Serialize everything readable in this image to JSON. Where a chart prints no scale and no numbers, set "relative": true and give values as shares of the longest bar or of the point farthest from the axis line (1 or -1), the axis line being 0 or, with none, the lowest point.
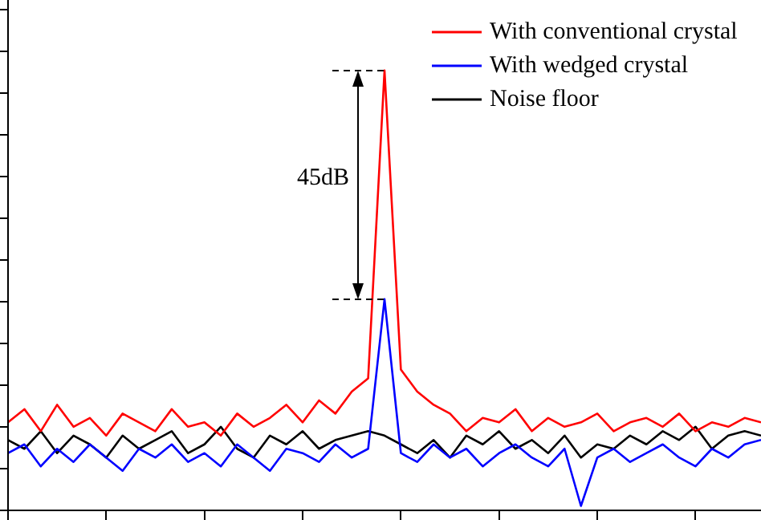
{
  "chart_data": {
    "type": "line",
    "relative": true,
    "categories": [
      null,
      null,
      null,
      null,
      null,
      null,
      null,
      null,
      null,
      null,
      null,
      null,
      null,
      null,
      null,
      null,
      null,
      null,
      null,
      null,
      null,
      null,
      null,
      null,
      null,
      null,
      null,
      null,
      null,
      null,
      null,
      null,
      null,
      null,
      null,
      null,
      null,
      null,
      null,
      null,
      null,
      null,
      null,
      null,
      null,
      null,
      null
    ],
    "series": [
      {
        "name": "With conventional crystal",
        "color": "#ff0000",
        "values": [
          0.2,
          0.23,
          0.18,
          0.24,
          0.19,
          0.21,
          0.17,
          0.22,
          0.2,
          0.18,
          0.23,
          0.19,
          0.2,
          0.17,
          0.22,
          0.19,
          0.21,
          0.24,
          0.2,
          0.25,
          0.22,
          0.27,
          0.3,
          1,
          0.32,
          0.27,
          0.24,
          0.22,
          0.18,
          0.21,
          0.2,
          0.23,
          0.18,
          0.21,
          0.19,
          0.2,
          0.22,
          0.18,
          0.2,
          0.21,
          0.19,
          0.22,
          0.18,
          0.2,
          0.19,
          0.21,
          0.2
        ]
      },
      {
        "name": "With wedged crystal",
        "color": "#0000ff",
        "values": [
          0.13,
          0.15,
          0.1,
          0.14,
          0.11,
          0.15,
          0.12,
          0.09,
          0.14,
          0.12,
          0.15,
          0.11,
          0.13,
          0.1,
          0.15,
          0.12,
          0.09,
          0.14,
          0.13,
          0.11,
          0.15,
          0.12,
          0.14,
          0.48,
          0.13,
          0.11,
          0.15,
          0.12,
          0.14,
          0.1,
          0.13,
          0.15,
          0.12,
          0.1,
          0.14,
          0.01,
          0.12,
          0.14,
          0.11,
          0.13,
          0.15,
          0.12,
          0.1,
          0.14,
          0.12,
          0.15,
          0.16
        ]
      },
      {
        "name": "Noise floor",
        "color": "#000000",
        "values": [
          0.16,
          0.14,
          0.18,
          0.13,
          0.17,
          0.15,
          0.12,
          0.17,
          0.14,
          0.16,
          0.18,
          0.13,
          0.15,
          0.19,
          0.14,
          0.12,
          0.17,
          0.15,
          0.18,
          0.14,
          0.16,
          0.17,
          0.18,
          0.17,
          0.15,
          0.13,
          0.16,
          0.12,
          0.17,
          0.15,
          0.18,
          0.14,
          0.16,
          0.13,
          0.17,
          0.12,
          0.15,
          0.14,
          0.17,
          0.15,
          0.18,
          0.16,
          0.19,
          0.14,
          0.17,
          0.18,
          0.17
        ]
      }
    ],
    "annotations": [
      "45dB"
    ],
    "legend": "top right",
    "grid": false,
    "marker": "none",
    "line_style": "solid",
    "tick_labels": false
  }
}
